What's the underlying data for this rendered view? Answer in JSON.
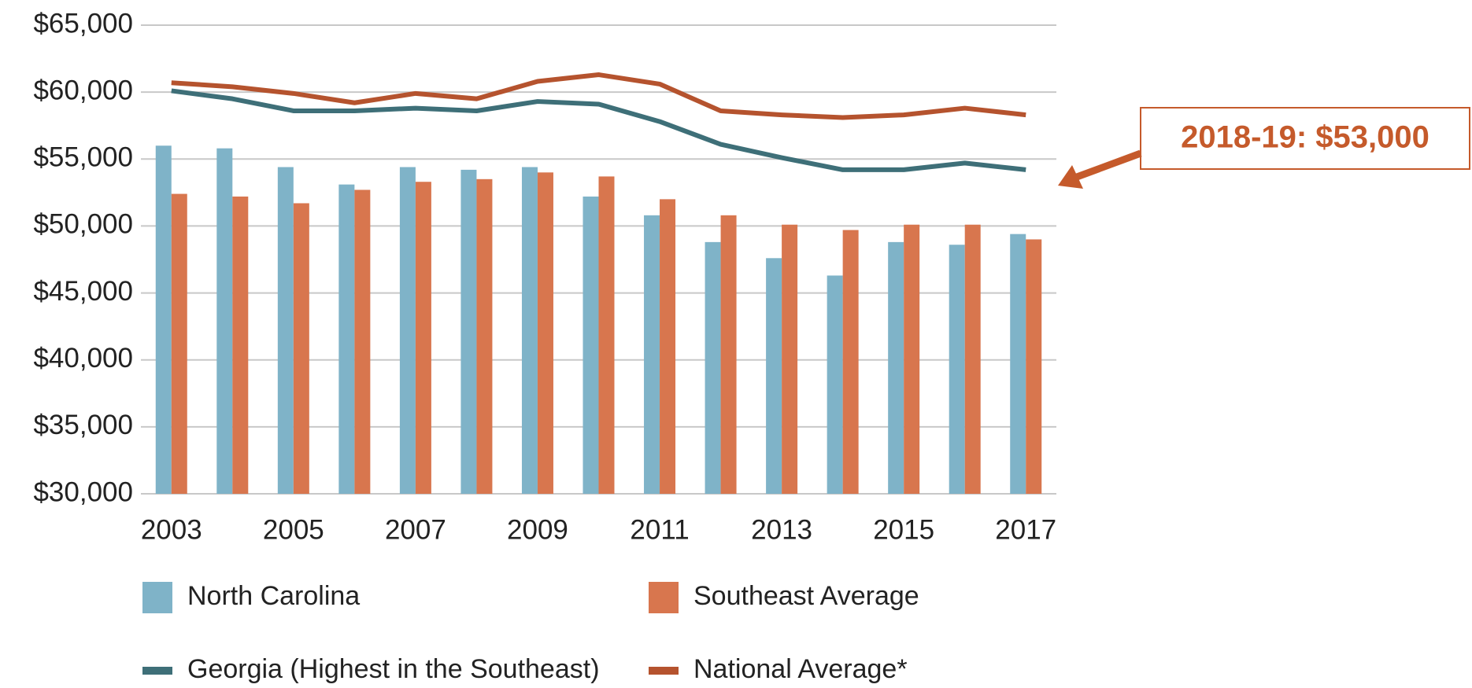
{
  "chart_data": {
    "type": "bar",
    "categories": [
      "2003",
      null,
      "2005",
      null,
      "2007",
      null,
      "2009",
      null,
      "2011",
      null,
      "2013",
      null,
      "2015",
      null,
      "2017"
    ],
    "series": [
      {
        "name": "North Carolina",
        "type": "bar",
        "color": "#7fb3c8",
        "values": [
          56000,
          55800,
          54400,
          53100,
          54400,
          54200,
          54400,
          52200,
          50800,
          48800,
          47600,
          46300,
          48800,
          48600,
          49400
        ]
      },
      {
        "name": "Southeast Average",
        "type": "bar",
        "color": "#d8764e",
        "values": [
          52400,
          52200,
          51700,
          52700,
          53300,
          53500,
          54000,
          53700,
          52000,
          50800,
          50100,
          49700,
          50100,
          50100,
          49000
        ]
      },
      {
        "name": "Georgia (Highest in the Southeast)",
        "type": "line",
        "color": "#3e6f78",
        "values": [
          60100,
          59500,
          58600,
          58600,
          58800,
          58600,
          59300,
          59100,
          57800,
          56100,
          55100,
          54200,
          54200,
          54700,
          54200
        ]
      },
      {
        "name": "National Average*",
        "type": "line",
        "color": "#b5532e",
        "values": [
          60700,
          60400,
          59900,
          59200,
          59900,
          59500,
          60800,
          61300,
          60600,
          58600,
          58300,
          58100,
          58300,
          58800,
          58300
        ]
      }
    ],
    "ylim": [
      30000,
      65000
    ],
    "yticks": [
      {
        "value": 30000,
        "label": "$30,000"
      },
      {
        "value": 35000,
        "label": "$35,000"
      },
      {
        "value": 40000,
        "label": "$40,000"
      },
      {
        "value": 45000,
        "label": "$45,000"
      },
      {
        "value": 50000,
        "label": "$50,000"
      },
      {
        "value": 55000,
        "label": "$55,000"
      },
      {
        "value": 60000,
        "label": "$60,000"
      },
      {
        "value": 65000,
        "label": "$65,000"
      }
    ],
    "grid": true,
    "annotations": [
      {
        "text": "2018-19: $53,000"
      }
    ]
  }
}
